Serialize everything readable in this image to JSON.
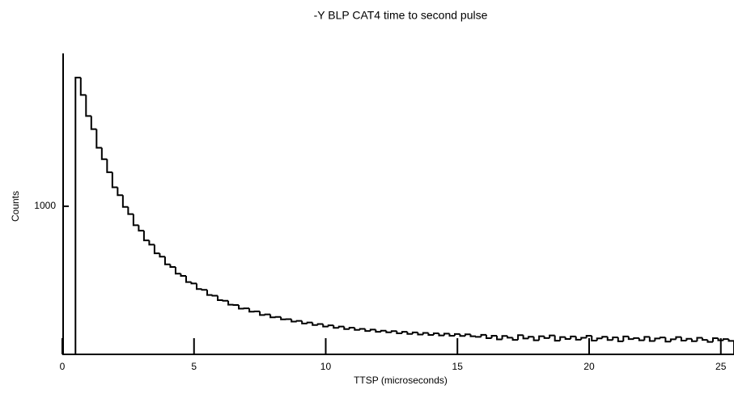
{
  "chart_data": {
    "type": "histogram",
    "title": "-Y BLP CAT4 time to second pulse",
    "x_label": "TTSP (microseconds)",
    "y_label": "Counts",
    "color": "#000000",
    "bins": [
      0.5,
      0.7,
      0.9,
      1.1,
      1.3,
      1.5,
      1.7,
      1.9,
      2.1,
      2.3,
      2.5,
      2.7,
      2.9,
      3.1,
      3.3,
      3.5,
      3.7,
      3.9,
      4.1,
      4.3,
      4.5,
      4.7,
      4.9,
      5.1,
      5.3,
      5.5,
      5.7,
      5.9,
      6.1,
      6.3,
      6.5,
      6.7,
      6.9,
      7.1,
      7.3,
      7.5,
      7.7,
      7.9,
      8.1,
      8.3,
      8.5,
      8.7,
      8.9,
      9.1,
      9.3,
      9.5,
      9.7,
      9.9,
      10.1,
      10.3,
      10.5,
      10.7,
      10.9,
      11.1,
      11.3,
      11.5,
      11.7,
      11.9,
      12.1,
      12.3,
      12.5,
      12.7,
      12.9,
      13.1,
      13.3,
      13.5,
      13.7,
      13.9,
      14.1,
      14.3,
      14.5,
      14.7,
      14.9,
      15.1,
      15.3,
      15.5,
      15.7,
      15.9,
      16.1,
      16.3,
      16.5,
      16.7,
      16.9,
      17.1,
      17.3,
      17.5,
      17.7,
      17.9,
      18.1,
      18.3,
      18.5,
      18.7,
      18.9,
      19.1,
      19.3,
      19.5,
      19.7,
      19.9,
      20.1,
      20.3,
      20.5,
      20.7,
      20.9,
      21.1,
      21.3,
      21.5,
      21.7,
      21.9,
      22.1,
      22.3,
      22.5,
      22.7,
      22.9,
      23.1,
      23.3,
      23.5,
      23.7,
      23.9,
      24.1,
      24.3,
      24.5,
      24.7,
      24.9,
      25.1,
      25.3,
      25.5
    ],
    "values": [
      1869,
      1752,
      1610,
      1521,
      1395,
      1318,
      1230,
      1128,
      1075,
      996,
      947,
      872,
      835,
      770,
      741,
      682,
      660,
      608,
      590,
      545,
      530,
      488,
      479,
      441,
      436,
      401,
      396,
      366,
      362,
      335,
      333,
      309,
      311,
      288,
      290,
      266,
      270,
      250,
      253,
      236,
      238,
      221,
      226,
      208,
      215,
      198,
      205,
      188,
      196,
      179,
      188,
      171,
      180,
      165,
      172,
      158,
      167,
      152,
      160,
      149,
      157,
      142,
      152,
      138,
      148,
      134,
      145,
      131,
      142,
      128,
      140,
      126,
      137,
      124,
      135,
      122,
      118,
      132,
      109,
      126,
      101,
      124,
      113,
      98,
      130,
      107,
      119,
      95,
      122,
      110,
      128,
      92,
      117,
      104,
      121,
      99,
      112,
      126,
      93,
      108,
      119,
      97,
      115,
      88,
      121,
      103,
      110,
      95,
      118,
      90,
      107,
      114,
      86,
      102,
      117,
      93,
      105,
      89,
      112,
      98,
      84,
      109,
      95,
      103,
      91
    ],
    "xlim": [
      0,
      25.5
    ],
    "xticks": [
      0,
      5,
      10,
      15,
      20,
      25
    ],
    "ylim": [
      0,
      2027
    ],
    "yticks": [
      1000
    ]
  }
}
